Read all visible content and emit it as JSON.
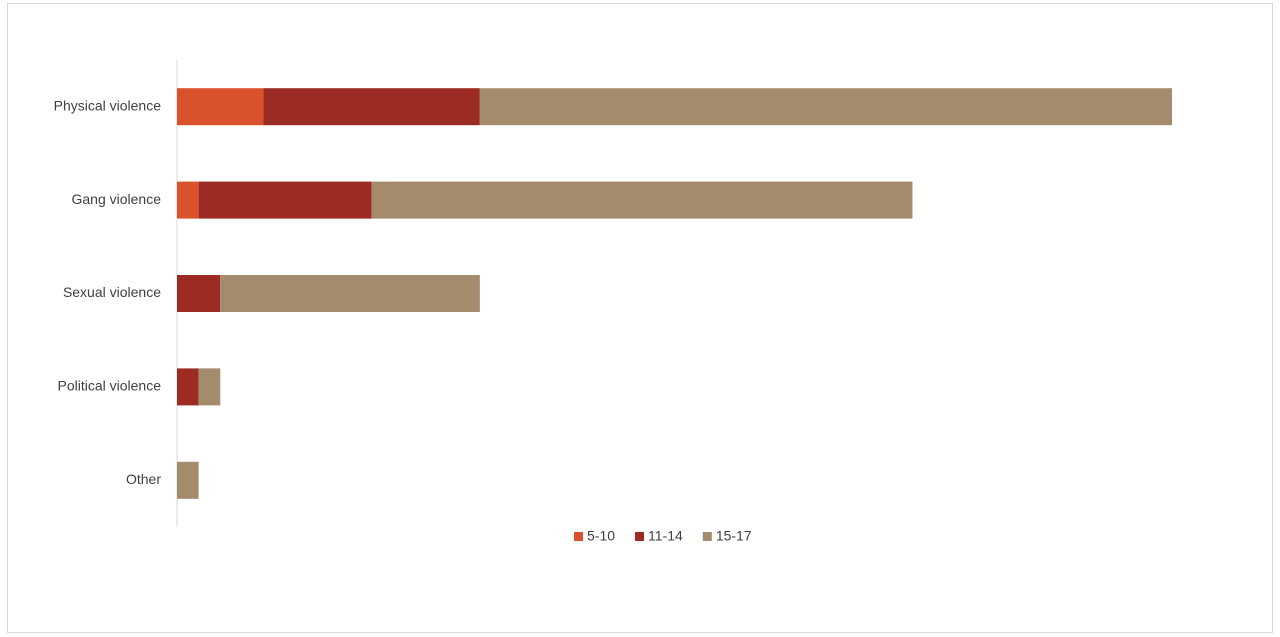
{
  "chart_data": {
    "type": "stacked-bar-horizontal",
    "categories": [
      "Physical  violence",
      "Gang violence",
      "Sexual violence",
      "Political violence",
      "Other"
    ],
    "series": [
      {
        "name": "5-10",
        "color": "#d9522b",
        "values": [
          4,
          1,
          0,
          0,
          0
        ]
      },
      {
        "name": "11-14",
        "color": "#9c2b23",
        "values": [
          10,
          8,
          2,
          1,
          0
        ]
      },
      {
        "name": "15-17",
        "color": "#a38b6c",
        "values": [
          32,
          25,
          12,
          1,
          1
        ]
      }
    ]
  }
}
